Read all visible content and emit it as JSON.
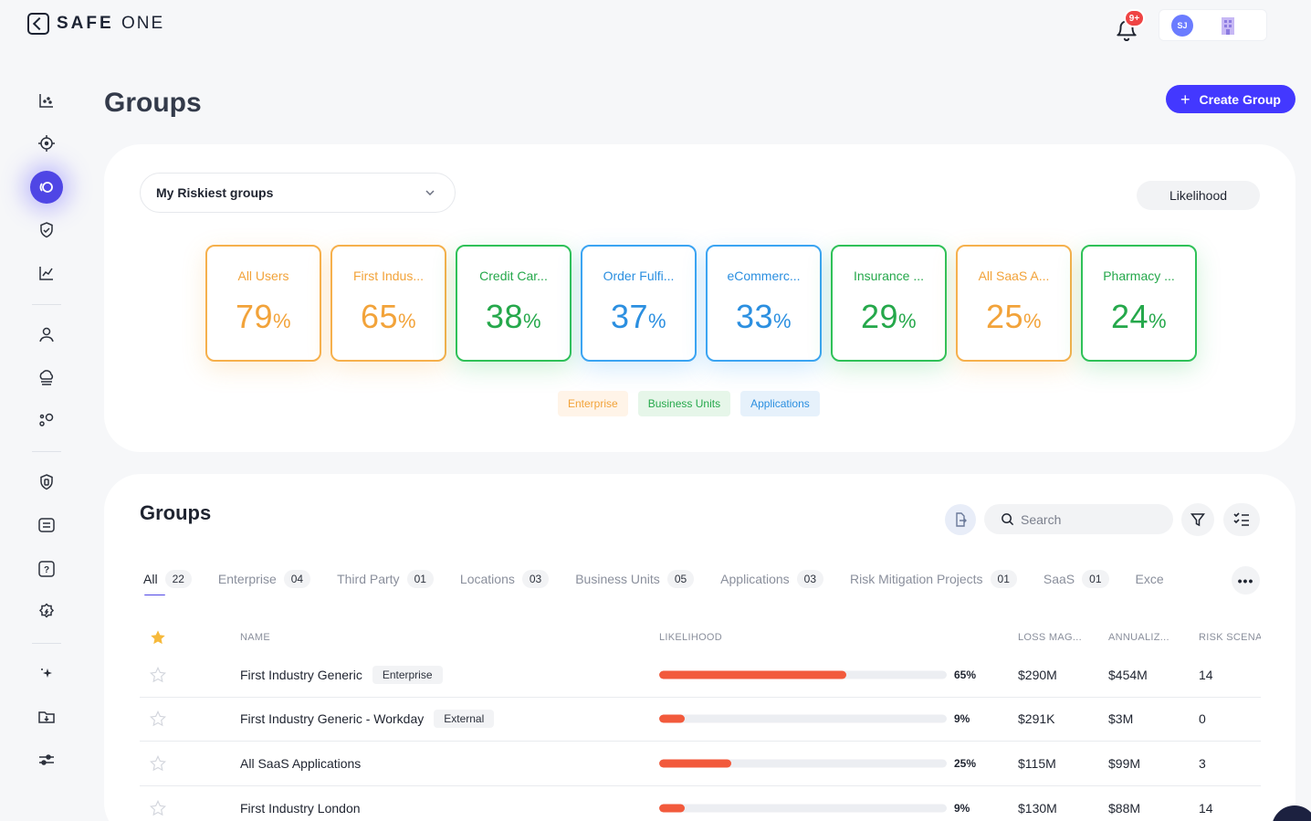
{
  "brand": {
    "name_bold": "SAFE",
    "name_light": "ONE"
  },
  "header": {
    "notification_badge": "9+",
    "avatar_initials": "SJ"
  },
  "page": {
    "title": "Groups",
    "create_button": "Create Group",
    "create_plus": "+"
  },
  "overview": {
    "dropdown_value": "My Riskiest groups",
    "metric_button": "Likelihood",
    "tiles": [
      {
        "name": "All Users",
        "value": "79",
        "unit": "%",
        "category": "Enterprise"
      },
      {
        "name": "First Indus...",
        "value": "65",
        "unit": "%",
        "category": "Enterprise"
      },
      {
        "name": "Credit Car...",
        "value": "38",
        "unit": "%",
        "category": "Business Units"
      },
      {
        "name": "Order Fulfi...",
        "value": "37",
        "unit": "%",
        "category": "Applications"
      },
      {
        "name": "eCommerc...",
        "value": "33",
        "unit": "%",
        "category": "Applications"
      },
      {
        "name": "Insurance ...",
        "value": "29",
        "unit": "%",
        "category": "Business Units"
      },
      {
        "name": "All SaaS A...",
        "value": "25",
        "unit": "%",
        "category": "Enterprise"
      },
      {
        "name": "Pharmacy ...",
        "value": "24",
        "unit": "%",
        "category": "Business Units"
      }
    ],
    "legend": [
      "Enterprise",
      "Business Units",
      "Applications"
    ],
    "colors": {
      "Enterprise": "#f2a33a",
      "Business Units": "#25a84b",
      "Applications": "#2b8fe0"
    }
  },
  "groups": {
    "title": "Groups",
    "search_placeholder": "Search",
    "tabs": [
      {
        "label": "All",
        "count": "22"
      },
      {
        "label": "Enterprise",
        "count": "04"
      },
      {
        "label": "Third Party",
        "count": "01"
      },
      {
        "label": "Locations",
        "count": "03"
      },
      {
        "label": "Business Units",
        "count": "05"
      },
      {
        "label": "Applications",
        "count": "03"
      },
      {
        "label": "Risk Mitigation Projects",
        "count": "01"
      },
      {
        "label": "SaaS",
        "count": "01"
      },
      {
        "label": "Exce",
        "count": ""
      }
    ],
    "more_label": "•••",
    "columns": [
      "NAME",
      "LIKELIHOOD",
      "LOSS MAG...",
      "ANNUALIZ...",
      "RISK SCENA"
    ],
    "rows": [
      {
        "name": "First Industry Generic",
        "tag": "Enterprise",
        "likelihood": 0.65,
        "likelihood_label": "65%",
        "loss": "$290M",
        "annualized": "$454M",
        "risk": "14"
      },
      {
        "name": "First Industry Generic - Workday",
        "tag": "External",
        "likelihood": 0.09,
        "likelihood_label": "9%",
        "loss": "$291K",
        "annualized": "$3M",
        "risk": "0"
      },
      {
        "name": "All SaaS Applications",
        "tag": "",
        "likelihood": 0.25,
        "likelihood_label": "25%",
        "loss": "$115M",
        "annualized": "$99M",
        "risk": "3"
      },
      {
        "name": "First Industry London",
        "tag": "",
        "likelihood": 0.09,
        "likelihood_label": "9%",
        "loss": "$130M",
        "annualized": "$88M",
        "risk": "14"
      }
    ],
    "bar_color": "#f25a3c"
  },
  "accent": "#4338ff"
}
